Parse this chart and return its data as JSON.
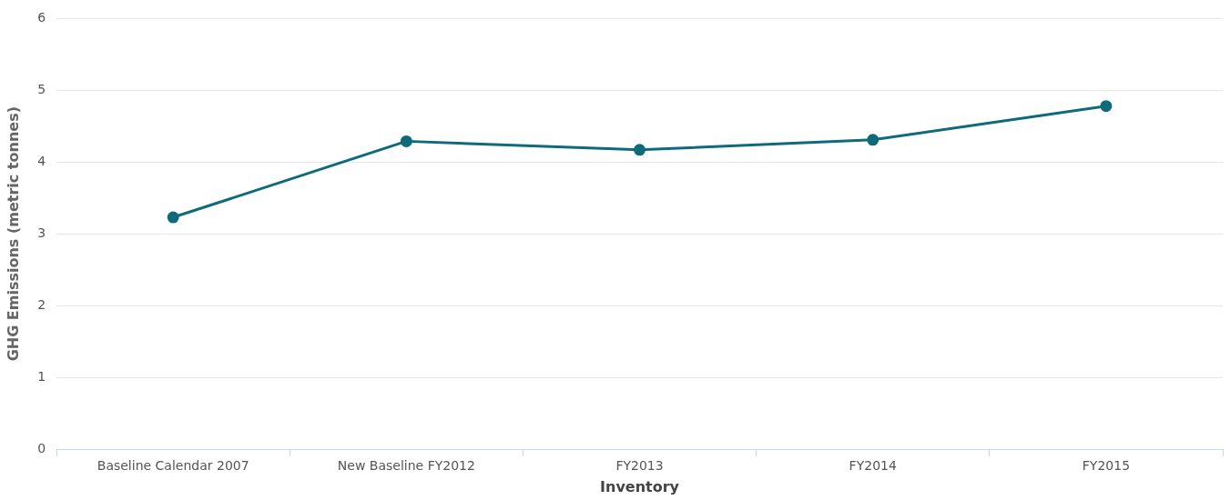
{
  "chart_data": {
    "type": "line",
    "xlabel": "Inventory",
    "ylabel": "GHG Emissions (metric tonnes)",
    "categories": [
      "Baseline Calendar 2007",
      "New Baseline FY2012",
      "FY2013",
      "FY2014",
      "FY2015"
    ],
    "series": [
      {
        "color": "#0f6a7c",
        "values": [
          3.23,
          4.29,
          4.17,
          4.31,
          4.78
        ]
      }
    ],
    "ylim": [
      0,
      6
    ],
    "yticks": [
      0,
      1,
      2,
      3,
      4,
      5,
      6
    ],
    "grid": "y",
    "marker": "circle",
    "legend": false
  }
}
